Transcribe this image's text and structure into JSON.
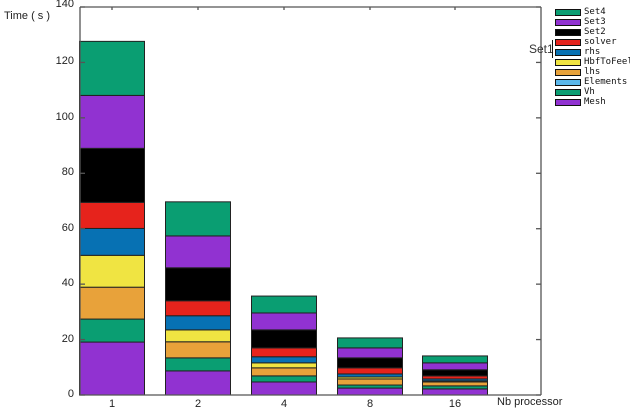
{
  "chart_data": {
    "type": "bar",
    "stacked": true,
    "title": "",
    "xlabel": "Nb processor",
    "ylabel": "Time ( s )",
    "ylim": [
      0,
      140
    ],
    "yticks": [
      0,
      20,
      40,
      60,
      80,
      100,
      120,
      140
    ],
    "grid": false,
    "legend_position": "right-outside-top",
    "categories": [
      "1",
      "2",
      "4",
      "8",
      "16"
    ],
    "series": [
      {
        "name": "Mesh",
        "color": "#9132d1",
        "values": [
          19.1,
          8.7,
          4.7,
          2.5,
          2.2
        ]
      },
      {
        "name": "Vh",
        "color": "#0a9e72",
        "values": [
          8.3,
          4.7,
          2.2,
          1.1,
          1.1
        ]
      },
      {
        "name": "Elements",
        "color": "#5cb8ec",
        "values": [
          0,
          0,
          0,
          0,
          0
        ]
      },
      {
        "name": "lhs",
        "color": "#e8a23a",
        "values": [
          11.5,
          5.8,
          2.9,
          2.2,
          1.4
        ]
      },
      {
        "name": "HbfToFeel",
        "color": "#f0e442",
        "values": [
          11.5,
          4.3,
          1.8,
          0.7,
          0.4
        ]
      },
      {
        "name": "rhs",
        "color": "#0771b3",
        "values": [
          9.7,
          5.1,
          2.2,
          1.1,
          0.7
        ]
      },
      {
        "name": "solver",
        "color": "#e6231c",
        "values": [
          9.4,
          5.4,
          3.2,
          2.2,
          1.1
        ]
      },
      {
        "name": "Set2",
        "color": "#000000",
        "values": [
          19.5,
          11.9,
          6.5,
          3.6,
          2.2
        ]
      },
      {
        "name": "Set3",
        "color": "#9132d1",
        "values": [
          19.1,
          11.5,
          6.1,
          3.6,
          2.5
        ]
      },
      {
        "name": "Set4",
        "color": "#0a9e72",
        "values": [
          19.5,
          12.3,
          6.1,
          3.6,
          2.5
        ]
      }
    ],
    "totals": [
      127.6,
      69.7,
      35.7,
      20.6,
      14.1
    ],
    "annotations": [
      "Set1"
    ]
  },
  "legend": {
    "items": [
      {
        "label": "Set4",
        "color": "#0a9e72"
      },
      {
        "label": "Set3",
        "color": "#9132d1"
      },
      {
        "label": "Set2",
        "color": "#000000"
      },
      {
        "label": "solver",
        "color": "#e6231c"
      },
      {
        "label": "rhs",
        "color": "#0771b3"
      },
      {
        "label": "HbfToFeel",
        "color": "#f0e442"
      },
      {
        "label": "lhs",
        "color": "#e8a23a"
      },
      {
        "label": "Elements",
        "color": "#5cb8ec"
      },
      {
        "label": "Vh",
        "color": "#0a9e72"
      },
      {
        "label": "Mesh",
        "color": "#9132d1"
      }
    ]
  },
  "annotation": {
    "set1": "Set1"
  },
  "axes": {
    "ylabel": "Time ( s )",
    "xlabel": "Nb processor",
    "yticks": [
      "0",
      "20",
      "40",
      "60",
      "80",
      "100",
      "120",
      "140"
    ],
    "xticks": [
      "1",
      "2",
      "4",
      "8",
      "16"
    ]
  }
}
